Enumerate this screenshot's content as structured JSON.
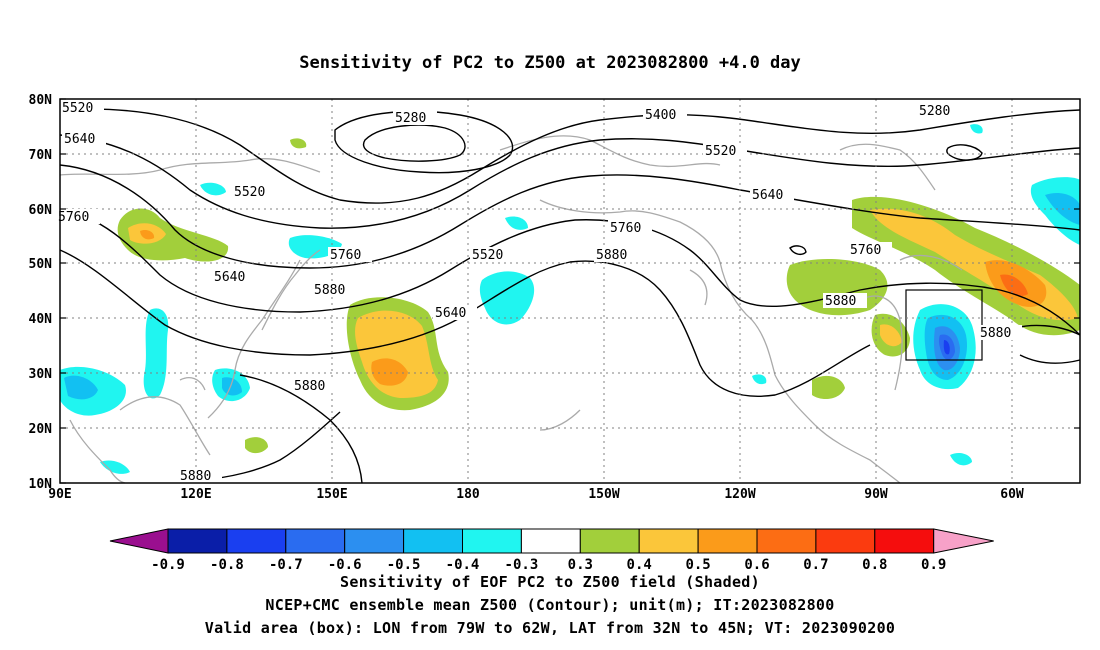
{
  "title": "Sensitivity of PC2 to Z500 at 2023082800 +4.0 day",
  "lat_labels": [
    "80N",
    "70N",
    "60N",
    "50N",
    "40N",
    "30N",
    "20N",
    "10N"
  ],
  "lon_labels": [
    "90E",
    "120E",
    "150E",
    "180",
    "150W",
    "120W",
    "90W",
    "60W"
  ],
  "colorbar": {
    "labels": [
      "-0.9",
      "-0.8",
      "-0.7",
      "-0.6",
      "-0.5",
      "-0.4",
      "-0.3",
      "0.3",
      "0.4",
      "0.5",
      "0.6",
      "0.7",
      "0.8",
      "0.9"
    ],
    "colors": [
      "#9a0f8f",
      "#0a1ea8",
      "#1a3ff0",
      "#2a6cf0",
      "#2c8ff0",
      "#12c0f2",
      "#20f5f0",
      "#ffffff",
      "#a2cf3b",
      "#fbc63a",
      "#fb9b1a",
      "#fc6d14",
      "#fb3b0f",
      "#f50d0d",
      "#f7a1c8"
    ]
  },
  "contour_labels": [
    "5520",
    "5640",
    "5760",
    "5520",
    "5640",
    "5760",
    "5880",
    "5880",
    "5880",
    "5280",
    "5640",
    "5520",
    "5400",
    "5520",
    "5760",
    "5880",
    "5640",
    "5760",
    "5880",
    "5280",
    "5880"
  ],
  "valid_box": {
    "lon_min": -79,
    "lon_max": -62,
    "lat_min": 32,
    "lat_max": 45
  },
  "footer": {
    "line1": "Sensitivity of EOF PC2 to Z500 field (Shaded)",
    "line2": "NCEP+CMC ensemble mean Z500 (Contour); unit(m); IT:2023082800",
    "line3": "Valid area (box): LON from 79W to 62W, LAT from 32N to 45N; VT: 2023090200"
  }
}
